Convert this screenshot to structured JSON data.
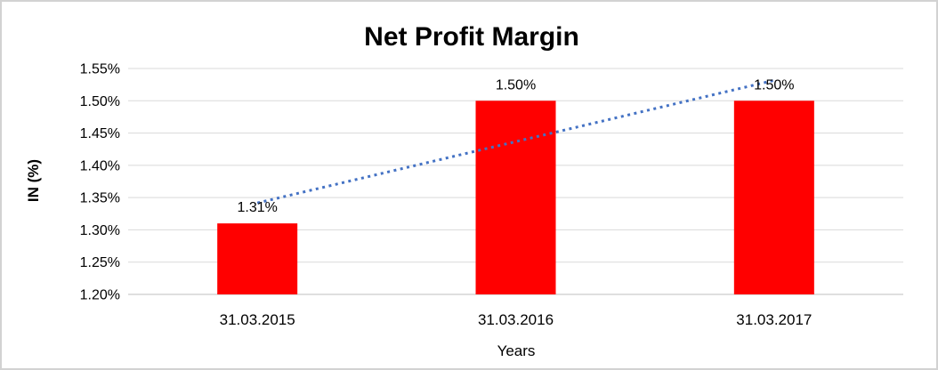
{
  "frame": {
    "border_color": "#d2d2d2",
    "background": "#ffffff"
  },
  "chart_data": {
    "type": "bar",
    "title": "Net Profit Margin",
    "xlabel": "Years",
    "ylabel": "IN (%)",
    "categories": [
      "31.03.2015",
      "31.03.2016",
      "31.03.2017"
    ],
    "values": [
      1.31,
      1.5,
      1.5
    ],
    "data_labels": [
      "1.31%",
      "1.50%",
      "1.50%"
    ],
    "ylim": [
      1.2,
      1.55
    ],
    "yticks": [
      {
        "value": 1.2,
        "label": "1.20%"
      },
      {
        "value": 1.25,
        "label": "1.25%"
      },
      {
        "value": 1.3,
        "label": "1.30%"
      },
      {
        "value": 1.35,
        "label": "1.35%"
      },
      {
        "value": 1.4,
        "label": "1.40%"
      },
      {
        "value": 1.45,
        "label": "1.45%"
      },
      {
        "value": 1.5,
        "label": "1.50%"
      },
      {
        "value": 1.55,
        "label": "1.55%"
      }
    ],
    "grid": true,
    "legend": "none",
    "bar_color": "#ff0000",
    "gridline_color": "#d9d9d9",
    "axis_line_color": "#bfbfbf",
    "text_color": "#000000",
    "trendline": {
      "type": "linear",
      "style": "dotted",
      "color": "#4472c4"
    }
  }
}
